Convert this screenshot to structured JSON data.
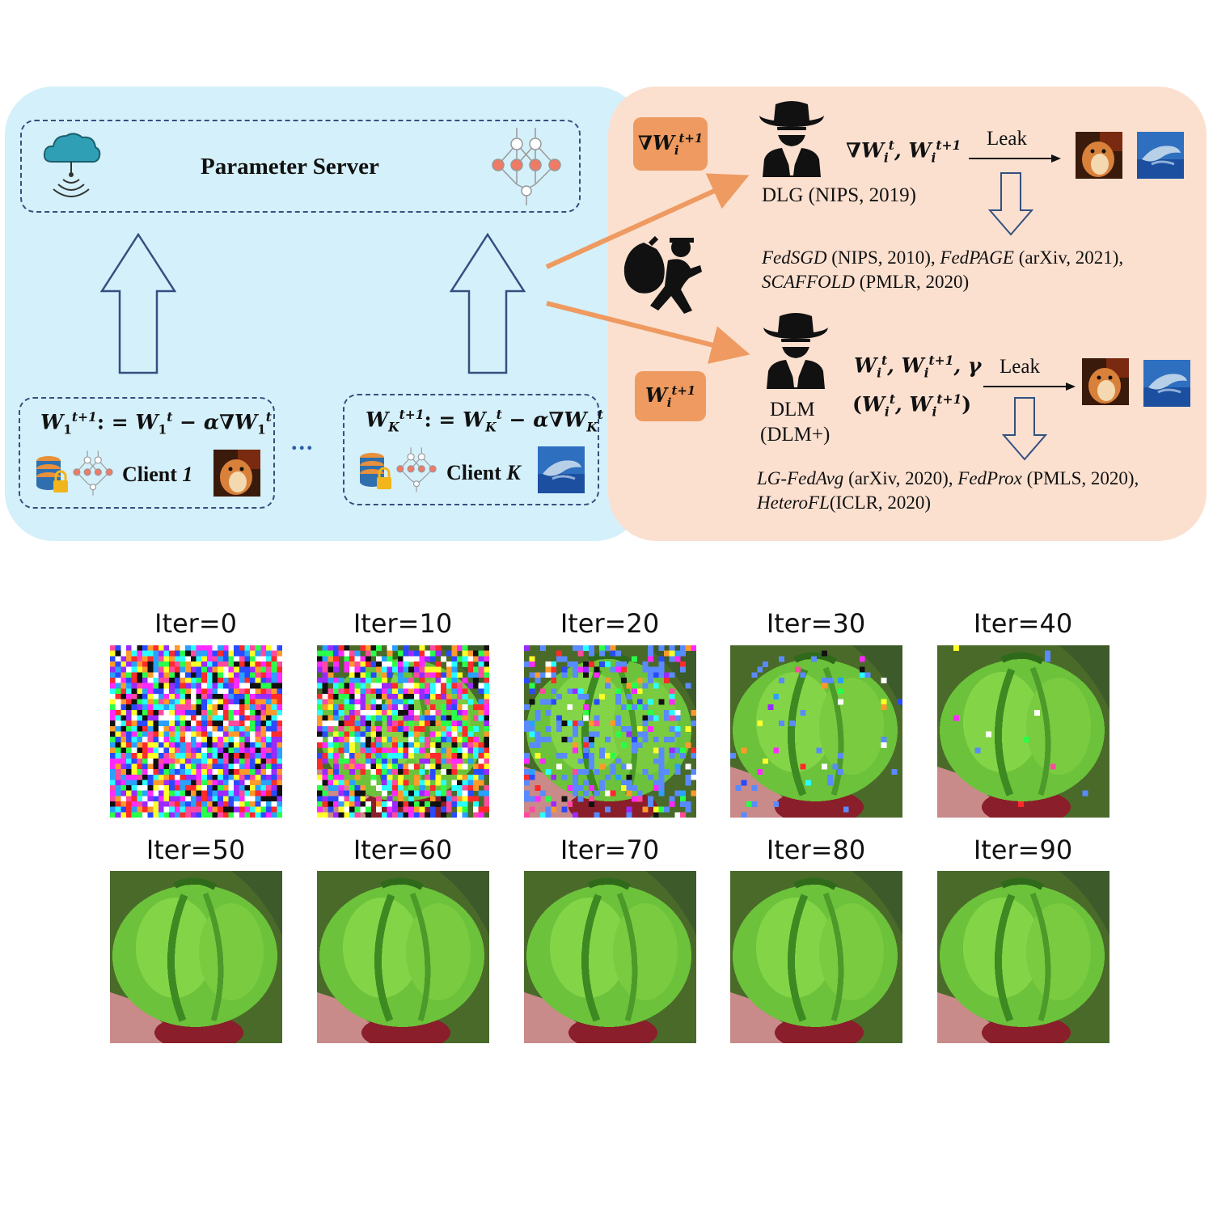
{
  "server": {
    "title": "Parameter Server"
  },
  "clients": [
    {
      "label": "Client 1",
      "name": "Client",
      "id": "1"
    },
    {
      "label": "Client K",
      "name": "Client",
      "id": "K"
    }
  ],
  "ellipsis": "...",
  "attack_gradient": {
    "method": "DLG (NIPS, 2019)",
    "leak_label": "Leak",
    "refs": [
      {
        "name": "FedSGD",
        "venue": " (NIPS, 2010), "
      },
      {
        "name": "FedPAGE",
        "venue": " (arXiv, 2021),"
      },
      {
        "name": "SCAFFOLD",
        "venue": " (PMLR, 2020)"
      }
    ]
  },
  "attack_weights": {
    "method": "DLM",
    "method_plus": "(DLM+)",
    "leak_label": "Leak",
    "refs": [
      {
        "name": "LG-FedAvg",
        "venue": " (arXiv, 2020), "
      },
      {
        "name": "FedProx",
        "venue": " (PMLS, 2020),"
      },
      {
        "name": "HeteroFL",
        "venue": "(ICLR, 2020)"
      }
    ]
  },
  "iterations": [
    "Iter=0",
    "Iter=10",
    "Iter=20",
    "Iter=30",
    "Iter=40",
    "Iter=50",
    "Iter=60",
    "Iter=70",
    "Iter=80",
    "Iter=90"
  ],
  "colors": {
    "left_panel": "#d4f0fa",
    "right_panel": "#fbe0d0",
    "dashed_border": "#34507f",
    "badge": "#ee9a60",
    "attack_arrow": "#ee9a60",
    "outline_arrow": "#34507f"
  },
  "icons": [
    "cloud-wifi-icon",
    "neural-network-icon",
    "database-lock-icon",
    "hacker-icon",
    "thief-icon",
    "hamster-image",
    "dolphin-image"
  ]
}
